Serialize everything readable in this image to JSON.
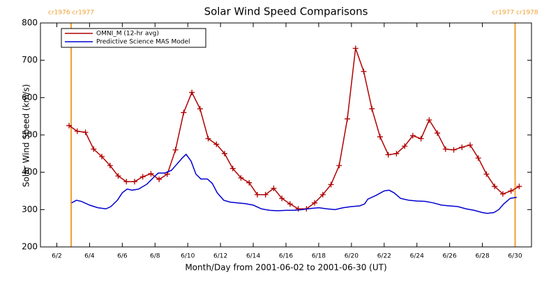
{
  "chart_data": {
    "type": "line",
    "title": "Solar Wind Speed Comparisons",
    "xlabel": "Month/Day from 2001-06-02 to 2001-06-30 (UT)",
    "ylabel": "Solar Wind Speed (km/s)",
    "xlim": [
      1,
      31
    ],
    "xticks": [
      {
        "value": 2,
        "label": "6/2"
      },
      {
        "value": 4,
        "label": "6/4"
      },
      {
        "value": 6,
        "label": "6/6"
      },
      {
        "value": 8,
        "label": "6/8"
      },
      {
        "value": 10,
        "label": "6/10"
      },
      {
        "value": 12,
        "label": "6/12"
      },
      {
        "value": 14,
        "label": "6/14"
      },
      {
        "value": 16,
        "label": "6/16"
      },
      {
        "value": 18,
        "label": "6/18"
      },
      {
        "value": 20,
        "label": "6/20"
      },
      {
        "value": 22,
        "label": "6/22"
      },
      {
        "value": 24,
        "label": "6/24"
      },
      {
        "value": 26,
        "label": "6/26"
      },
      {
        "value": 28,
        "label": "6/28"
      },
      {
        "value": 30,
        "label": "6/30"
      }
    ],
    "ylim": [
      200,
      800
    ],
    "yticks": [
      200,
      300,
      400,
      500,
      600,
      700,
      800
    ],
    "legend": "upper left",
    "vlines": [
      {
        "x": 2.875,
        "label": "cr1976 cr1977",
        "color": "#f0a030"
      },
      {
        "x": 30.0,
        "label": "cr1977 cr1978",
        "color": "#f0a030"
      }
    ],
    "series": [
      {
        "name": "OMNI_M (12-hr avg)",
        "color": "#b00000",
        "marker": "+",
        "x": [
          2.75,
          3.25,
          3.75,
          4.25,
          4.75,
          5.25,
          5.75,
          6.25,
          6.75,
          7.25,
          7.75,
          8.25,
          8.75,
          9.25,
          9.75,
          10.25,
          10.75,
          11.25,
          11.75,
          12.25,
          12.75,
          13.25,
          13.75,
          14.25,
          14.75,
          15.25,
          15.75,
          16.25,
          16.75,
          17.25,
          17.75,
          18.25,
          18.75,
          19.25,
          19.75,
          20.25,
          20.75,
          21.25,
          21.75,
          22.25,
          22.75,
          23.25,
          23.75,
          24.25,
          24.75,
          25.25,
          25.75,
          26.25,
          26.75,
          27.25,
          27.75,
          28.25,
          28.75,
          29.25,
          29.75,
          30.25
        ],
        "values": [
          525,
          510,
          507,
          462,
          442,
          418,
          390,
          375,
          375,
          388,
          396,
          381,
          395,
          460,
          560,
          614,
          570,
          490,
          475,
          450,
          410,
          385,
          372,
          340,
          340,
          357,
          330,
          315,
          302,
          302,
          318,
          340,
          367,
          418,
          543,
          732,
          670,
          570,
          495,
          447,
          450,
          470,
          498,
          490,
          540,
          505,
          462,
          460,
          467,
          473,
          438,
          395,
          362,
          342,
          350,
          362
        ]
      },
      {
        "name": "Predictive Science MAS Model",
        "color": "#0000d0",
        "x": [
          2.9,
          3.2,
          3.5,
          4,
          4.5,
          5,
          5.3,
          5.7,
          6,
          6.3,
          6.6,
          7,
          7.5,
          8,
          8.2,
          8.6,
          9,
          9.3,
          9.7,
          9.9,
          10.2,
          10.5,
          10.8,
          11.2,
          11.5,
          11.8,
          12.2,
          12.6,
          13,
          13.5,
          14,
          14.5,
          15,
          15.5,
          16,
          16.5,
          17,
          17.5,
          18,
          18.5,
          19,
          19.5,
          20,
          20.5,
          20.8,
          21,
          21.5,
          22,
          22.3,
          22.6,
          23,
          23.5,
          24,
          24.5,
          25,
          25.5,
          26,
          26.5,
          27,
          27.5,
          28,
          28.3,
          28.7,
          29,
          29.3,
          29.7,
          30.1
        ],
        "values": [
          318,
          325,
          322,
          312,
          305,
          302,
          308,
          325,
          345,
          355,
          352,
          355,
          368,
          390,
          398,
          398,
          405,
          420,
          440,
          448,
          430,
          395,
          382,
          382,
          370,
          345,
          325,
          320,
          318,
          316,
          312,
          302,
          298,
          297,
          298,
          298,
          300,
          303,
          305,
          302,
          300,
          305,
          308,
          310,
          315,
          328,
          338,
          350,
          352,
          345,
          330,
          325,
          323,
          322,
          318,
          312,
          310,
          308,
          302,
          298,
          292,
          290,
          292,
          300,
          315,
          330,
          333
        ]
      }
    ]
  }
}
